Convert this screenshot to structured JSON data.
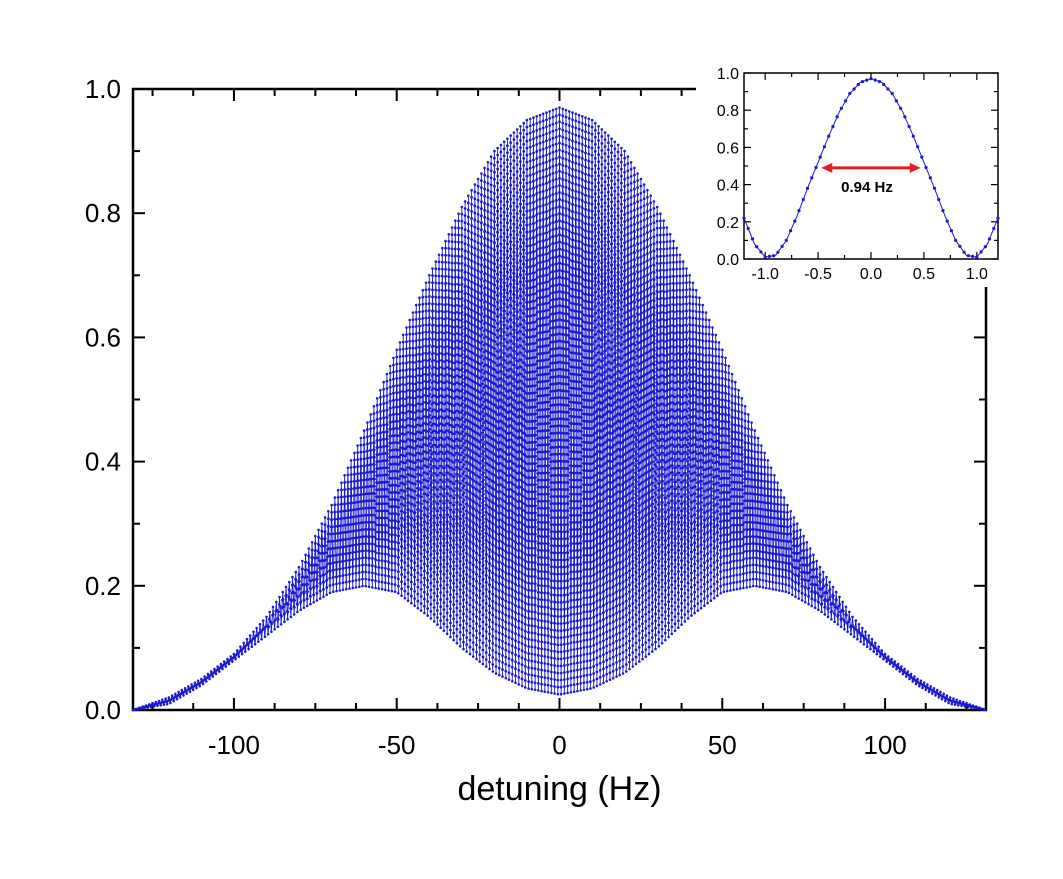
{
  "chart_data": [
    {
      "type": "line",
      "xlabel": "detuning (Hz)",
      "ylabel": "",
      "xlim": [
        -131,
        131
      ],
      "ylim": [
        0,
        1.0
      ],
      "xticks": [
        -100,
        -50,
        0,
        50,
        100
      ],
      "xtick_labels": [
        "-100",
        "-50",
        "0",
        "50",
        "100"
      ],
      "yticks": [
        0.0,
        0.2,
        0.4,
        0.6,
        0.8,
        1.0
      ],
      "ytick_labels": [
        "0.0",
        "0.2",
        "0.4",
        "0.6",
        "0.8",
        "1.0"
      ],
      "grid": false,
      "color": "#1a1acc",
      "series": [
        {
          "description_of_shape": "dense oscillation between lower and upper envelopes",
          "upper_envelope": {
            "x": [
              -131,
              -120,
              -110,
              -100,
              -90,
              -80,
              -70,
              -60,
              -50,
              -40,
              -30,
              -20,
              -10,
              0,
              10,
              20,
              30,
              40,
              50,
              60,
              70,
              80,
              90,
              100,
              110,
              120,
              131
            ],
            "y": [
              0.0,
              0.02,
              0.05,
              0.09,
              0.15,
              0.23,
              0.33,
              0.45,
              0.58,
              0.7,
              0.81,
              0.9,
              0.95,
              0.97,
              0.95,
              0.9,
              0.81,
              0.7,
              0.58,
              0.45,
              0.33,
              0.23,
              0.15,
              0.09,
              0.05,
              0.02,
              0.0
            ]
          },
          "lower_envelope": {
            "x": [
              -131,
              -120,
              -110,
              -100,
              -90,
              -80,
              -70,
              -60,
              -50,
              -40,
              -30,
              -20,
              -10,
              0,
              10,
              20,
              30,
              40,
              50,
              60,
              70,
              80,
              90,
              100,
              110,
              120,
              131
            ],
            "y": [
              0.0,
              0.01,
              0.04,
              0.08,
              0.12,
              0.16,
              0.19,
              0.2,
              0.19,
              0.15,
              0.1,
              0.06,
              0.035,
              0.025,
              0.035,
              0.06,
              0.1,
              0.15,
              0.19,
              0.2,
              0.19,
              0.16,
              0.12,
              0.08,
              0.04,
              0.01,
              0.0
            ]
          },
          "oscillation_period_hz": 1.0
        }
      ]
    },
    {
      "type": "line",
      "xlim": [
        -1.2,
        1.2
      ],
      "ylim": [
        0,
        1.0
      ],
      "xticks": [
        -1.0,
        -0.5,
        0.0,
        0.5,
        1.0
      ],
      "xtick_labels": [
        "-1.0",
        "-0.5",
        "0.0",
        "0.5",
        "1.0"
      ],
      "yticks": [
        0.0,
        0.2,
        0.4,
        0.6,
        0.8,
        1.0
      ],
      "ytick_labels": [
        "0.0",
        "0.2",
        "0.4",
        "0.6",
        "0.8",
        "1.0"
      ],
      "color": "#1a1acc",
      "series": [
        {
          "x": [
            -1.2,
            -1.1,
            -1.0,
            -0.9,
            -0.8,
            -0.7,
            -0.6,
            -0.5,
            -0.4,
            -0.3,
            -0.2,
            -0.1,
            0.0,
            0.1,
            0.2,
            0.3,
            0.4,
            0.5,
            0.6,
            0.7,
            0.8,
            0.9,
            1.0,
            1.1,
            1.2
          ],
          "y": [
            0.22,
            0.08,
            0.01,
            0.02,
            0.1,
            0.23,
            0.38,
            0.52,
            0.66,
            0.79,
            0.89,
            0.95,
            0.97,
            0.95,
            0.89,
            0.79,
            0.66,
            0.52,
            0.38,
            0.23,
            0.1,
            0.02,
            0.01,
            0.08,
            0.22
          ]
        }
      ],
      "annotation": {
        "text": "0.94 Hz",
        "arrow_from_x": -0.47,
        "arrow_to_x": 0.47,
        "arrow_y": 0.49,
        "color": "#e02020"
      }
    }
  ]
}
